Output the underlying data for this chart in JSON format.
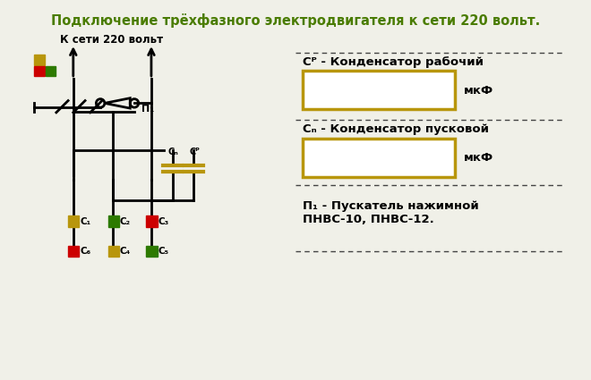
{
  "title": "Подключение трёхфазного электродвигателя к сети 220 вольт.",
  "title_color": "#4a7c00",
  "title_fontsize": 11,
  "bg_color": "#f0f0e8",
  "text_color": "#000000",
  "label_network": "К сети 220 вольт",
  "label_p1": "П₁",
  "label_cp": "Сᴾ",
  "label_cn": "Сₙ",
  "label_mkf": "мкФ",
  "label_cr_text": "Сᴾ - Конденсатор рабочий",
  "label_cn_text": "Сₙ - Конденсатор пусковой",
  "label_p1_text": "П₁ - Пускатель нажимной\nПНВС-10, ПНВС-12.",
  "color_olive": "#b8960c",
  "color_red": "#cc0000",
  "color_green": "#2d7a00",
  "color_dashed": "#555555",
  "color_box": "#b8960c",
  "wire_color": "#000000",
  "node_colors": {
    "C1": "#b8960c",
    "C2": "#2d7a00",
    "C3": "#cc0000",
    "C4": "#b8960c",
    "C5": "#2d7a00",
    "C6": "#cc0000"
  }
}
